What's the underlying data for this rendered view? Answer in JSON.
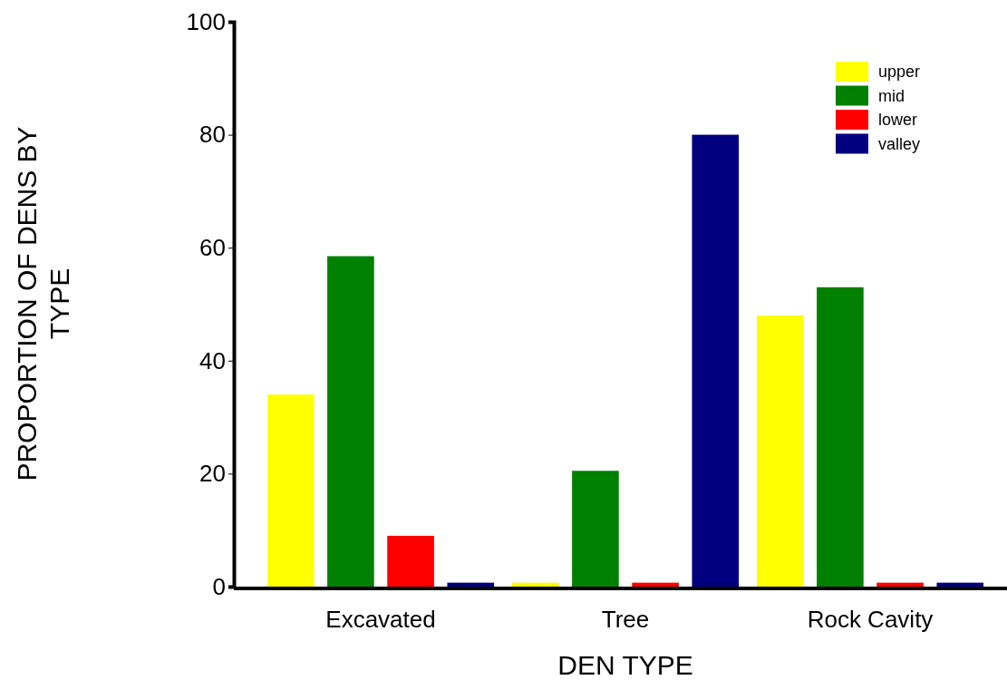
{
  "chart_data": {
    "type": "bar",
    "xlabel": "DEN TYPE",
    "ylabel": "PROPORTION OF DENS BY TYPE",
    "categories": [
      "Excavated",
      "Tree",
      "Rock Cavity"
    ],
    "series": [
      {
        "name": "upper",
        "color": "#ffff00",
        "values": [
          34,
          0.7,
          48
        ]
      },
      {
        "name": "mid",
        "color": "#008000",
        "values": [
          58.5,
          20.5,
          53
        ]
      },
      {
        "name": "lower",
        "color": "#ff0000",
        "values": [
          9,
          0.7,
          0.7
        ]
      },
      {
        "name": "valley",
        "color": "#000080",
        "values": [
          0.7,
          80,
          0.7
        ]
      }
    ],
    "ylim": [
      0,
      100
    ],
    "yticks": [
      0,
      20,
      40,
      60,
      80,
      100
    ],
    "legend": "top right"
  }
}
